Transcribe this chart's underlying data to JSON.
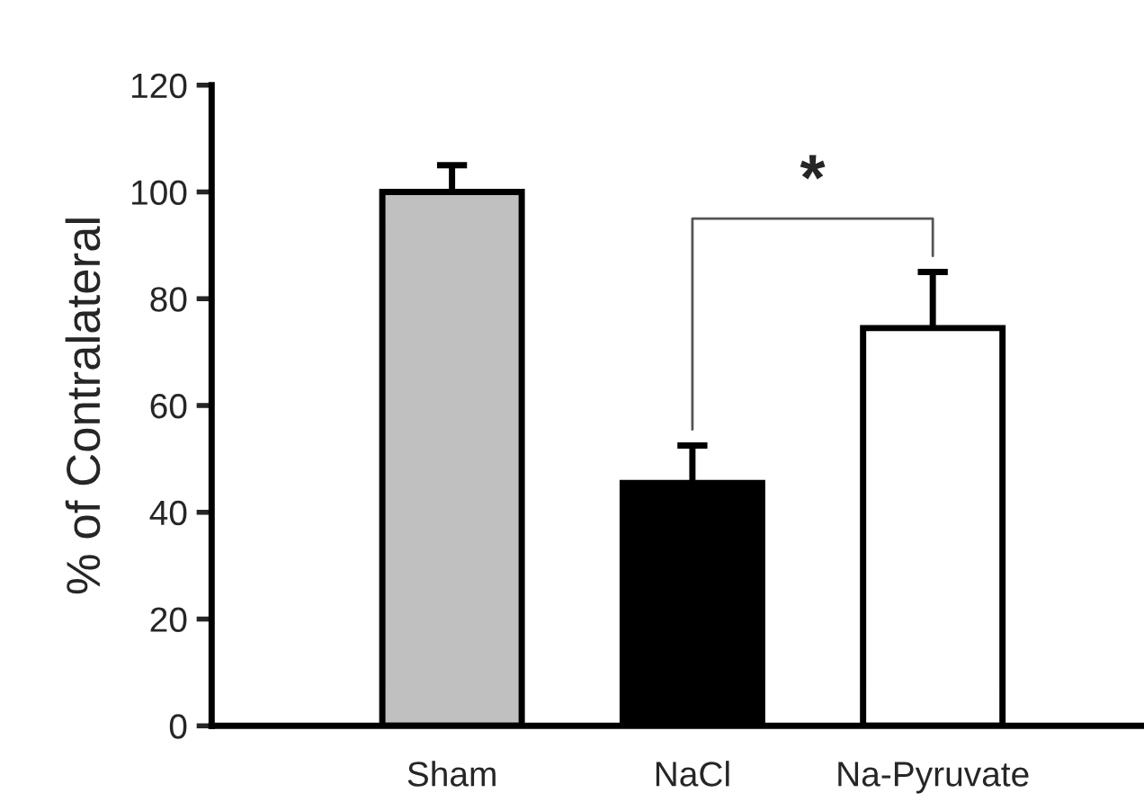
{
  "chart_data": {
    "type": "bar",
    "ylabel": "% of Contralateral",
    "categories": [
      "Sham",
      "NaCl",
      "Na-Pyruvate"
    ],
    "values": [
      100,
      45.5,
      74.5
    ],
    "colors": [
      "#c0c0c0",
      "#000000",
      "#ffffff"
    ],
    "errors": [
      5,
      7,
      10.5
    ],
    "ylim": [
      0,
      120
    ],
    "yticks": [
      0,
      20,
      40,
      60,
      80,
      100,
      120
    ],
    "annotations": [
      "*"
    ],
    "grid": false,
    "legend": false
  }
}
